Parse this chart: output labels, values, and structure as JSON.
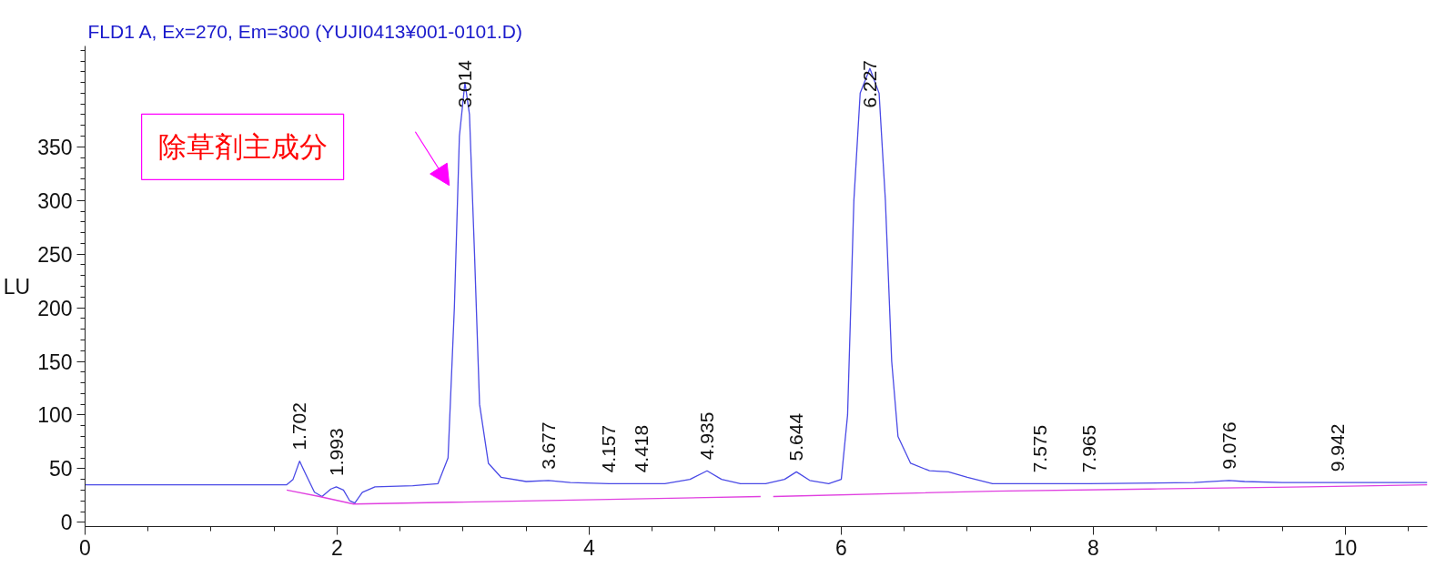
{
  "chart_data": {
    "type": "line",
    "title": "FLD1 A, Ex=270, Em=300 (YUJI0413¥001-0101.D)",
    "ylabel": "LU",
    "xlim": [
      0,
      10.65
    ],
    "ylim": [
      -4,
      444
    ],
    "xticks": [
      0,
      2,
      4,
      6,
      8,
      10
    ],
    "yticks": [
      0,
      50,
      100,
      150,
      200,
      250,
      300,
      350
    ],
    "grid": false,
    "marker": "none",
    "line_style": "solid",
    "series": [
      {
        "color": "#4a4ae6",
        "x": [
          0,
          1.6,
          1.65,
          1.702,
          1.75,
          1.82,
          1.88,
          1.95,
          1.993,
          2.05,
          2.1,
          2.14,
          2.2,
          2.3,
          2.6,
          2.8,
          2.88,
          2.93,
          2.97,
          3.014,
          3.05,
          3.09,
          3.13,
          3.2,
          3.3,
          3.5,
          3.677,
          3.85,
          4.157,
          4.418,
          4.6,
          4.8,
          4.935,
          5.05,
          5.2,
          5.4,
          5.55,
          5.644,
          5.75,
          5.9,
          6.0,
          6.05,
          6.1,
          6.15,
          6.227,
          6.3,
          6.35,
          6.4,
          6.45,
          6.55,
          6.7,
          6.85,
          7.0,
          7.2,
          7.575,
          7.965,
          8.8,
          9.076,
          9.2,
          9.5,
          9.942,
          10.65
        ],
        "values": [
          35,
          35,
          40,
          57,
          45,
          28,
          24,
          31,
          33,
          30,
          20,
          18,
          28,
          33,
          34,
          36,
          60,
          200,
          360,
          410,
          380,
          250,
          110,
          55,
          42,
          38,
          39,
          37,
          36,
          36,
          36,
          40,
          48,
          40,
          36,
          36,
          40,
          47,
          39,
          36,
          40,
          100,
          300,
          400,
          423,
          400,
          300,
          150,
          80,
          55,
          48,
          47,
          42,
          36,
          36,
          36,
          37,
          39,
          38,
          37,
          37,
          37
        ]
      },
      {
        "color": "#e040e0",
        "x": [
          1.6,
          1.86,
          2.13,
          5.36,
          5.4,
          5.46,
          7.2,
          8.45,
          9.7,
          10.65
        ],
        "values": [
          30,
          24,
          17,
          24,
          null,
          24,
          29,
          31,
          33,
          35
        ]
      }
    ],
    "annotations": [
      "除草剤主成分",
      {
        "text": "1.702",
        "x": 1.702,
        "y": 57
      },
      {
        "text": "1.993",
        "x": 1.993,
        "y": 33
      },
      {
        "text": "3.014",
        "x": 3.014,
        "y": 410
      },
      {
        "text": "3.677",
        "x": 3.677,
        "y": 39
      },
      {
        "text": "4.157",
        "x": 4.157,
        "y": 36
      },
      {
        "text": "4.418",
        "x": 4.418,
        "y": 36
      },
      {
        "text": "4.935",
        "x": 4.935,
        "y": 48
      },
      {
        "text": "5.644",
        "x": 5.644,
        "y": 47
      },
      {
        "text": "6.227",
        "x": 6.227,
        "y": 423
      },
      {
        "text": "7.575",
        "x": 7.575,
        "y": 36
      },
      {
        "text": "7.965",
        "x": 7.965,
        "y": 36
      },
      {
        "text": "9.076",
        "x": 9.076,
        "y": 39
      },
      {
        "text": "9.942",
        "x": 9.942,
        "y": 37
      }
    ]
  }
}
